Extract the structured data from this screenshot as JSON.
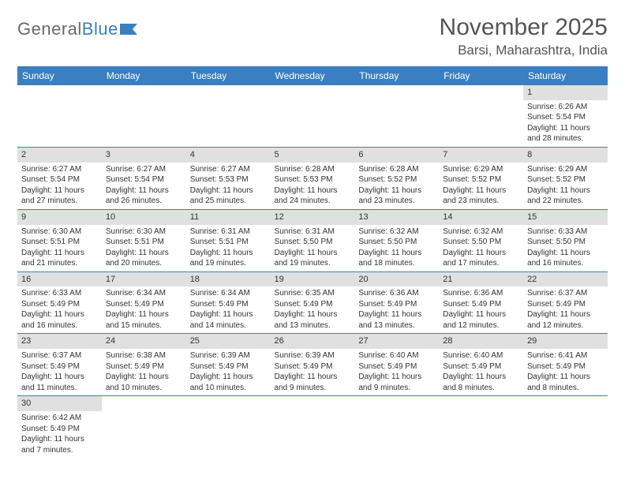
{
  "logo": {
    "part1": "General",
    "part2": "Blue"
  },
  "title": "November 2025",
  "location": "Barsi, Maharashtra, India",
  "colors": {
    "header_bg": "#3a7fbf",
    "header_text": "#ffffff",
    "daynum_bg": "#e0e0e0",
    "border": "#3a7fbf",
    "background": "#ffffff",
    "text": "#333333",
    "title_text": "#555555"
  },
  "days_of_week": [
    "Sunday",
    "Monday",
    "Tuesday",
    "Wednesday",
    "Thursday",
    "Friday",
    "Saturday"
  ],
  "first_day_index": 6,
  "num_days": 30,
  "cells": {
    "1": {
      "sunrise": "6:26 AM",
      "sunset": "5:54 PM",
      "daylight": "11 hours and 28 minutes."
    },
    "2": {
      "sunrise": "6:27 AM",
      "sunset": "5:54 PM",
      "daylight": "11 hours and 27 minutes."
    },
    "3": {
      "sunrise": "6:27 AM",
      "sunset": "5:54 PM",
      "daylight": "11 hours and 26 minutes."
    },
    "4": {
      "sunrise": "6:27 AM",
      "sunset": "5:53 PM",
      "daylight": "11 hours and 25 minutes."
    },
    "5": {
      "sunrise": "6:28 AM",
      "sunset": "5:53 PM",
      "daylight": "11 hours and 24 minutes."
    },
    "6": {
      "sunrise": "6:28 AM",
      "sunset": "5:52 PM",
      "daylight": "11 hours and 23 minutes."
    },
    "7": {
      "sunrise": "6:29 AM",
      "sunset": "5:52 PM",
      "daylight": "11 hours and 23 minutes."
    },
    "8": {
      "sunrise": "6:29 AM",
      "sunset": "5:52 PM",
      "daylight": "11 hours and 22 minutes."
    },
    "9": {
      "sunrise": "6:30 AM",
      "sunset": "5:51 PM",
      "daylight": "11 hours and 21 minutes."
    },
    "10": {
      "sunrise": "6:30 AM",
      "sunset": "5:51 PM",
      "daylight": "11 hours and 20 minutes."
    },
    "11": {
      "sunrise": "6:31 AM",
      "sunset": "5:51 PM",
      "daylight": "11 hours and 19 minutes."
    },
    "12": {
      "sunrise": "6:31 AM",
      "sunset": "5:50 PM",
      "daylight": "11 hours and 19 minutes."
    },
    "13": {
      "sunrise": "6:32 AM",
      "sunset": "5:50 PM",
      "daylight": "11 hours and 18 minutes."
    },
    "14": {
      "sunrise": "6:32 AM",
      "sunset": "5:50 PM",
      "daylight": "11 hours and 17 minutes."
    },
    "15": {
      "sunrise": "6:33 AM",
      "sunset": "5:50 PM",
      "daylight": "11 hours and 16 minutes."
    },
    "16": {
      "sunrise": "6:33 AM",
      "sunset": "5:49 PM",
      "daylight": "11 hours and 16 minutes."
    },
    "17": {
      "sunrise": "6:34 AM",
      "sunset": "5:49 PM",
      "daylight": "11 hours and 15 minutes."
    },
    "18": {
      "sunrise": "6:34 AM",
      "sunset": "5:49 PM",
      "daylight": "11 hours and 14 minutes."
    },
    "19": {
      "sunrise": "6:35 AM",
      "sunset": "5:49 PM",
      "daylight": "11 hours and 13 minutes."
    },
    "20": {
      "sunrise": "6:36 AM",
      "sunset": "5:49 PM",
      "daylight": "11 hours and 13 minutes."
    },
    "21": {
      "sunrise": "6:36 AM",
      "sunset": "5:49 PM",
      "daylight": "11 hours and 12 minutes."
    },
    "22": {
      "sunrise": "6:37 AM",
      "sunset": "5:49 PM",
      "daylight": "11 hours and 12 minutes."
    },
    "23": {
      "sunrise": "6:37 AM",
      "sunset": "5:49 PM",
      "daylight": "11 hours and 11 minutes."
    },
    "24": {
      "sunrise": "6:38 AM",
      "sunset": "5:49 PM",
      "daylight": "11 hours and 10 minutes."
    },
    "25": {
      "sunrise": "6:39 AM",
      "sunset": "5:49 PM",
      "daylight": "11 hours and 10 minutes."
    },
    "26": {
      "sunrise": "6:39 AM",
      "sunset": "5:49 PM",
      "daylight": "11 hours and 9 minutes."
    },
    "27": {
      "sunrise": "6:40 AM",
      "sunset": "5:49 PM",
      "daylight": "11 hours and 9 minutes."
    },
    "28": {
      "sunrise": "6:40 AM",
      "sunset": "5:49 PM",
      "daylight": "11 hours and 8 minutes."
    },
    "29": {
      "sunrise": "6:41 AM",
      "sunset": "5:49 PM",
      "daylight": "11 hours and 8 minutes."
    },
    "30": {
      "sunrise": "6:42 AM",
      "sunset": "5:49 PM",
      "daylight": "11 hours and 7 minutes."
    }
  },
  "labels": {
    "sunrise": "Sunrise:",
    "sunset": "Sunset:",
    "daylight": "Daylight:"
  }
}
